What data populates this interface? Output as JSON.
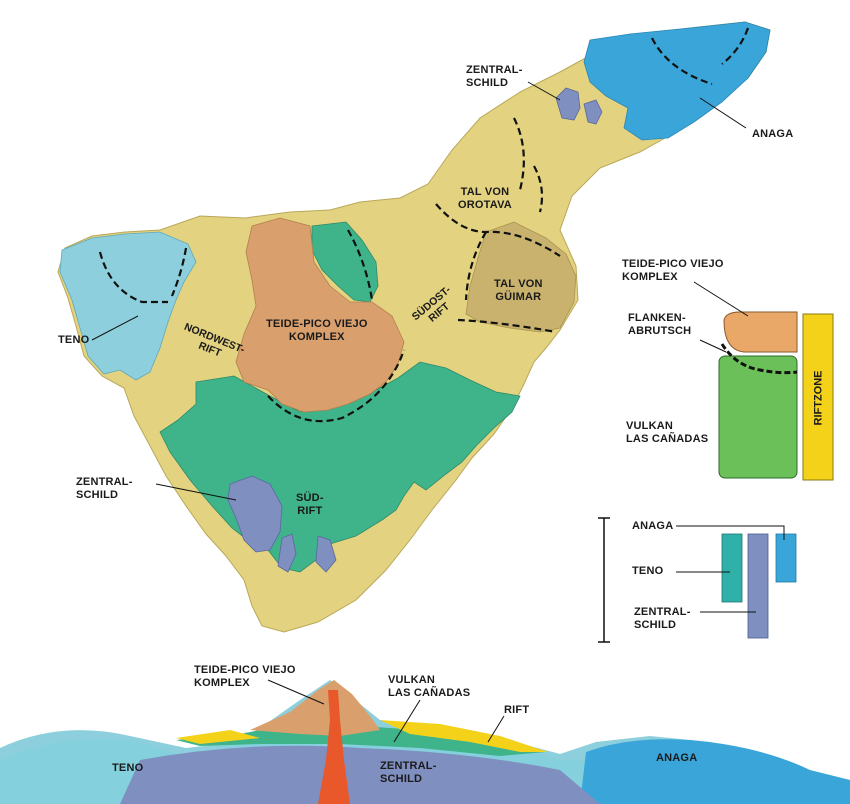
{
  "colors": {
    "rift_yellow": "#e3d27f",
    "teide_orange": "#d9a06e",
    "canadas_green": "#3fb38a",
    "teno_cyan": "#8dcfdc",
    "anaga_blue": "#3aa5d8",
    "zentral_purple": "#7f8fc0",
    "guimar_olive": "#c8b26e",
    "ocean": "#ffffff",
    "legend_yellow": "#f4d21a",
    "legend_green": "#6cc05a",
    "legend_orange": "#e9a868"
  },
  "labels": {
    "zentralschild_north": "ZENTRAL-\nSCHILD",
    "anaga": "ANAGA",
    "tal_orotava": "TAL VON\nOROTAVA",
    "teide_map": "TEIDE-PICO VIEJO\nKOMPLEX",
    "teno": "TENO",
    "nordwest_rift": "NORDWEST-\nRIFT",
    "suedost_rift": "SÜDOST-\nRIFT",
    "tal_guimar": "TAL VON\nGÜIMAR",
    "zentralschild_west": "ZENTRAL-\nSCHILD",
    "sued_rift": "SÜD-\nRIFT"
  },
  "inset_structure": {
    "teide": "TEIDE-PICO VIEJO\nKOMPLEX",
    "flanken": "FLANKEN-\nABRUTSCH",
    "vulkan": "VULKAN\nLAS CAÑADAS",
    "riftzone": "RIFTZONE"
  },
  "inset_age": {
    "anaga": "ANAGA",
    "teno": "TENO",
    "zentralschild": "ZENTRAL-\nSCHILD"
  },
  "cross_section": {
    "teide": "TEIDE-PICO VIEJO\nKOMPLEX",
    "vulkan": "VULKAN\nLAS CAÑADAS",
    "rift": "RIFT",
    "teno": "TENO",
    "zentralschild": "ZENTRAL-\nSCHILD",
    "anaga": "ANAGA"
  }
}
